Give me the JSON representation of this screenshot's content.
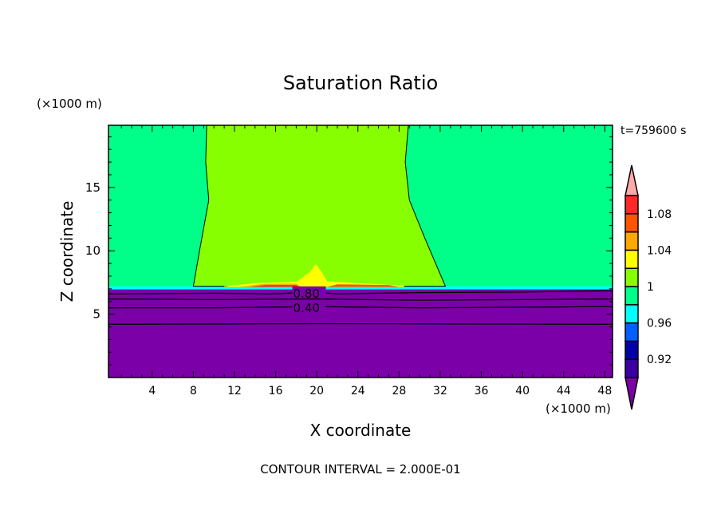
{
  "chart_data": {
    "type": "heatmap",
    "title": "Saturation Ratio",
    "xlabel": "X coordinate",
    "ylabel": "Z coordinate",
    "x_units": "(×1000 m)",
    "y_units": "(×1000 m)",
    "time_label": "t=759600 s",
    "footer": "CONTOUR INTERVAL = 2.000E-01",
    "xlim": [
      -0.25,
      48.75
    ],
    "ylim": [
      0,
      19.9
    ],
    "xticks": [
      4,
      8,
      12,
      16,
      20,
      24,
      28,
      32,
      36,
      40,
      44,
      48
    ],
    "yticks": [
      5,
      10,
      15
    ],
    "colorbar": {
      "levels": [
        0.9,
        0.92,
        0.94,
        0.96,
        0.98,
        1.0,
        1.02,
        1.04,
        1.06,
        1.08,
        1.1
      ],
      "labels": [
        "0.92",
        "0.96",
        "1",
        "1.04",
        "1.08"
      ],
      "label_values": [
        0.92,
        0.96,
        1.0,
        1.04,
        1.08
      ],
      "colors": [
        "#3a00a0",
        "#0000a8",
        "#0060ff",
        "#00ffff",
        "#00ff88",
        "#88ff00",
        "#ffff00",
        "#ffa800",
        "#ff5400",
        "#ff2828"
      ],
      "under_color": "#7c00a8",
      "over_color": "#ffa8a8"
    },
    "regions": [
      {
        "name": "region-subsaturated",
        "color": "#7c00a8",
        "points": [
          [
            -0.25,
            0
          ],
          [
            48.75,
            0
          ],
          [
            48.75,
            7.0
          ],
          [
            -0.25,
            7.0
          ]
        ]
      },
      {
        "name": "region-0.98-1.00",
        "color": "#00ff88",
        "points": [
          [
            -0.25,
            7.1
          ],
          [
            48.75,
            7.1
          ],
          [
            48.75,
            19.9
          ],
          [
            -0.25,
            19.9
          ]
        ]
      },
      {
        "name": "region-cyan-band",
        "color": "#00ffff",
        "points": [
          [
            -0.25,
            6.95
          ],
          [
            48.75,
            6.95
          ],
          [
            48.75,
            7.2
          ],
          [
            -0.25,
            7.2
          ]
        ]
      },
      {
        "name": "region-1.00-1.02",
        "color": "#88ff00",
        "points": [
          [
            8.0,
            7.2
          ],
          [
            8.6,
            10
          ],
          [
            9.5,
            14
          ],
          [
            9.2,
            17
          ],
          [
            9.3,
            19.9
          ],
          [
            28.9,
            19.9
          ],
          [
            28.6,
            17
          ],
          [
            29,
            14
          ],
          [
            30.5,
            11
          ],
          [
            32.5,
            7.2
          ]
        ]
      },
      {
        "name": "region-1.02-1.04",
        "color": "#ffff00",
        "points": [
          [
            11,
            7.2
          ],
          [
            14,
            7.45
          ],
          [
            18,
            7.55
          ],
          [
            19.3,
            8.3
          ],
          [
            19.9,
            8.95
          ],
          [
            20.5,
            8.3
          ],
          [
            21,
            7.6
          ],
          [
            24,
            7.45
          ],
          [
            28.5,
            7.25
          ],
          [
            28.5,
            7.15
          ],
          [
            11,
            7.15
          ]
        ]
      },
      {
        "name": "region-1.04-1.06",
        "color": "#ffa800",
        "points": [
          [
            12.5,
            7.15
          ],
          [
            15,
            7.4
          ],
          [
            18,
            7.4
          ],
          [
            18.5,
            7.15
          ]
        ]
      },
      {
        "name": "region-1.06-1.08",
        "color": "#ff5400",
        "points": [
          [
            21,
            7.15
          ],
          [
            22,
            7.35
          ],
          [
            27,
            7.3
          ],
          [
            28,
            7.15
          ]
        ]
      },
      {
        "name": "region-1.08-1.10",
        "color": "#ff2828",
        "points": [
          [
            13.5,
            7.15
          ],
          [
            15,
            7.3
          ],
          [
            18,
            7.3
          ],
          [
            18.3,
            7.15
          ]
        ]
      }
    ],
    "contours": [
      {
        "label": "0.80",
        "label_x": 17.7,
        "points": [
          [
            -0.25,
            6.6
          ],
          [
            10,
            6.65
          ],
          [
            16,
            6.6
          ],
          [
            19.5,
            6.75
          ],
          [
            22,
            6.6
          ],
          [
            30,
            6.7
          ],
          [
            40,
            6.75
          ],
          [
            48.75,
            6.85
          ]
        ]
      },
      {
        "label": "",
        "points": [
          [
            -0.25,
            6.2
          ],
          [
            10,
            6.15
          ],
          [
            20,
            6.2
          ],
          [
            30,
            6.1
          ],
          [
            40,
            6.15
          ],
          [
            48.75,
            6.2
          ]
        ]
      },
      {
        "label": "0.40",
        "label_x": 17.7,
        "points": [
          [
            -0.25,
            5.5
          ],
          [
            10,
            5.5
          ],
          [
            20,
            5.6
          ],
          [
            30,
            5.5
          ],
          [
            40,
            5.55
          ],
          [
            48.75,
            5.6
          ]
        ]
      },
      {
        "label": "",
        "points": [
          [
            -0.25,
            4.2
          ],
          [
            20,
            4.25
          ],
          [
            48.75,
            4.2
          ]
        ]
      }
    ]
  }
}
